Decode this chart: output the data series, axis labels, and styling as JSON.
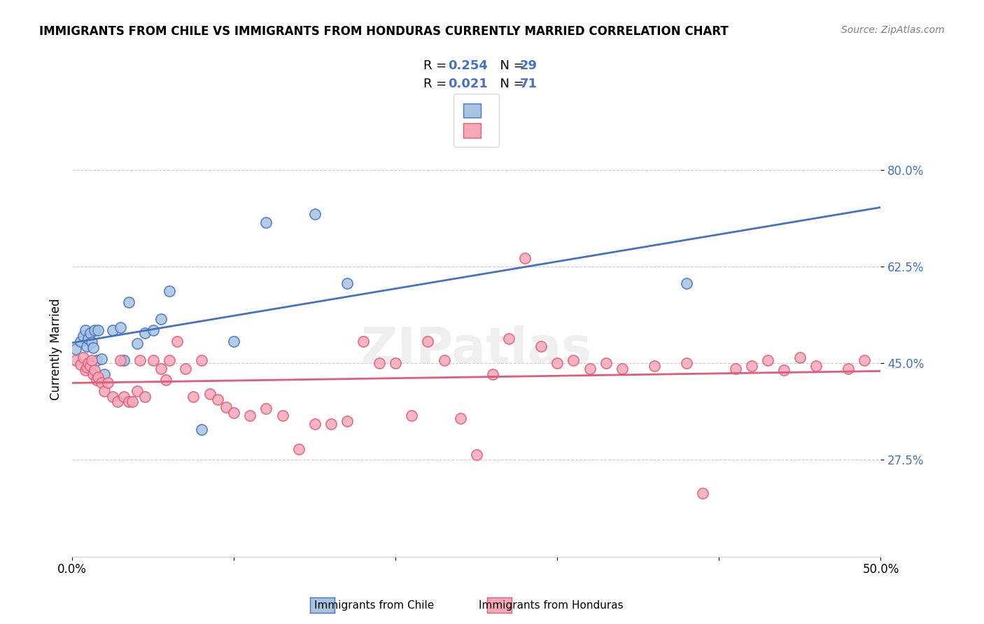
{
  "title": "IMMIGRANTS FROM CHILE VS IMMIGRANTS FROM HONDURAS CURRENTLY MARRIED CORRELATION CHART",
  "source": "Source: ZipAtlas.com",
  "xlabel_label": "",
  "ylabel_label": "Currently Married",
  "xlim": [
    0.0,
    0.5
  ],
  "ylim": [
    0.1,
    0.85
  ],
  "xticks": [
    0.0,
    0.1,
    0.2,
    0.3,
    0.4,
    0.5
  ],
  "xticklabels": [
    "0.0%",
    "",
    "",
    "",
    "",
    "50.0%"
  ],
  "ytick_positions": [
    0.275,
    0.45,
    0.625,
    0.8
  ],
  "ytick_labels": [
    "27.5%",
    "45.0%",
    "62.5%",
    "80.0%"
  ],
  "chile_color": "#a8c4e0",
  "honduras_color": "#f4a8b8",
  "chile_line_color": "#4472c4",
  "honduras_line_color": "#e05c7a",
  "chile_R": 0.254,
  "chile_N": 29,
  "honduras_R": 0.021,
  "honduras_N": 71,
  "watermark": "ZIPatlas",
  "chile_points_x": [
    0.002,
    0.005,
    0.007,
    0.008,
    0.009,
    0.01,
    0.011,
    0.012,
    0.013,
    0.014,
    0.015,
    0.016,
    0.018,
    0.02,
    0.025,
    0.03,
    0.032,
    0.035,
    0.04,
    0.045,
    0.05,
    0.055,
    0.06,
    0.08,
    0.1,
    0.12,
    0.15,
    0.17,
    0.38
  ],
  "chile_points_y": [
    0.475,
    0.49,
    0.5,
    0.51,
    0.48,
    0.495,
    0.505,
    0.488,
    0.478,
    0.51,
    0.455,
    0.51,
    0.458,
    0.43,
    0.51,
    0.515,
    0.455,
    0.56,
    0.485,
    0.505,
    0.51,
    0.53,
    0.58,
    0.33,
    0.49,
    0.705,
    0.72,
    0.595,
    0.595
  ],
  "honduras_points_x": [
    0.002,
    0.005,
    0.007,
    0.008,
    0.009,
    0.01,
    0.011,
    0.012,
    0.013,
    0.014,
    0.015,
    0.016,
    0.018,
    0.02,
    0.022,
    0.025,
    0.028,
    0.03,
    0.032,
    0.035,
    0.037,
    0.04,
    0.042,
    0.045,
    0.05,
    0.055,
    0.058,
    0.06,
    0.065,
    0.07,
    0.075,
    0.08,
    0.085,
    0.09,
    0.095,
    0.1,
    0.11,
    0.12,
    0.13,
    0.14,
    0.15,
    0.16,
    0.17,
    0.18,
    0.19,
    0.2,
    0.21,
    0.22,
    0.23,
    0.24,
    0.25,
    0.26,
    0.27,
    0.28,
    0.29,
    0.3,
    0.31,
    0.32,
    0.33,
    0.34,
    0.36,
    0.38,
    0.39,
    0.41,
    0.42,
    0.43,
    0.44,
    0.45,
    0.46,
    0.48,
    0.49
  ],
  "honduras_points_y": [
    0.455,
    0.448,
    0.46,
    0.438,
    0.442,
    0.45,
    0.445,
    0.455,
    0.43,
    0.438,
    0.42,
    0.425,
    0.415,
    0.4,
    0.415,
    0.39,
    0.38,
    0.455,
    0.39,
    0.38,
    0.38,
    0.4,
    0.455,
    0.39,
    0.455,
    0.44,
    0.42,
    0.455,
    0.49,
    0.44,
    0.39,
    0.455,
    0.395,
    0.385,
    0.37,
    0.36,
    0.355,
    0.368,
    0.355,
    0.295,
    0.34,
    0.34,
    0.345,
    0.49,
    0.45,
    0.45,
    0.355,
    0.49,
    0.455,
    0.35,
    0.285,
    0.43,
    0.495,
    0.64,
    0.48,
    0.45,
    0.455,
    0.44,
    0.45,
    0.44,
    0.445,
    0.45,
    0.215,
    0.44,
    0.445,
    0.455,
    0.438,
    0.46,
    0.445,
    0.44,
    0.455
  ]
}
